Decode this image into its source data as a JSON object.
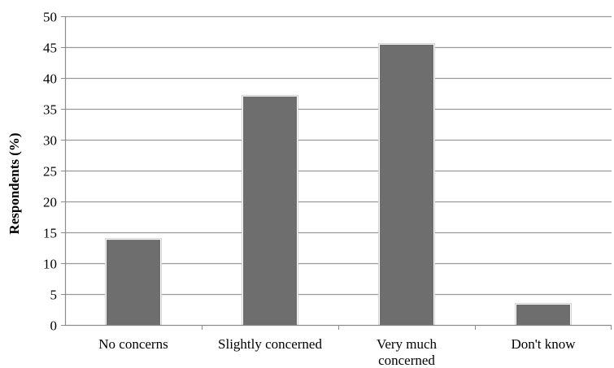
{
  "chart_data": {
    "type": "bar",
    "title": "",
    "xlabel": "",
    "ylabel": "Respondents (%)",
    "ylim": [
      0,
      50
    ],
    "yticks": [
      0,
      5,
      10,
      15,
      20,
      25,
      30,
      35,
      40,
      45,
      50
    ],
    "ytick_labels": [
      "0",
      "5",
      "10",
      "15",
      "20",
      "25",
      "30",
      "35",
      "40",
      "45",
      "50"
    ],
    "categories": [
      "No concerns",
      "Slightly concerned",
      "Very much concerned",
      "Don't know"
    ],
    "category_label_lines": [
      [
        "No concerns"
      ],
      [
        "Slightly concerned"
      ],
      [
        "Very much",
        "concerned"
      ],
      [
        "Don't know"
      ]
    ],
    "values": [
      13.8,
      37,
      45.4,
      3.3
    ],
    "grid": true,
    "legend": "none",
    "colors": {
      "bar": "#6e6e6e",
      "bar_highlight": "#ffffff",
      "grid": "#9a9a9a",
      "axis": "#8c8c8c"
    }
  }
}
